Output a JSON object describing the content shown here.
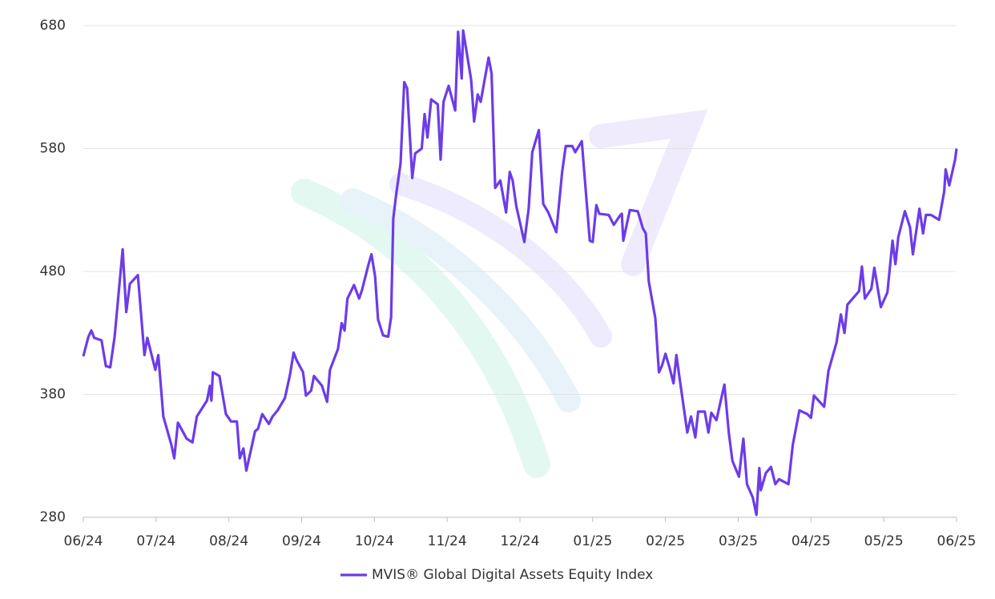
{
  "chart_data": {
    "type": "line",
    "legend": "bottom",
    "grid": true,
    "xlim": [
      0,
      12
    ],
    "xticks": [
      {
        "value": 0,
        "label": "06/24"
      },
      {
        "value": 1,
        "label": "07/24"
      },
      {
        "value": 2,
        "label": "08/24"
      },
      {
        "value": 3,
        "label": "09/24"
      },
      {
        "value": 4,
        "label": "10/24"
      },
      {
        "value": 5,
        "label": "11/24"
      },
      {
        "value": 6,
        "label": "12/24"
      },
      {
        "value": 7,
        "label": "01/25"
      },
      {
        "value": 8,
        "label": "02/25"
      },
      {
        "value": 9,
        "label": "03/25"
      },
      {
        "value": 10,
        "label": "04/25"
      },
      {
        "value": 11,
        "label": "05/25"
      },
      {
        "value": 12,
        "label": "06/25"
      }
    ],
    "ylim": [
      280,
      680
    ],
    "yticks": [
      280,
      380,
      480,
      580,
      680
    ],
    "x": [
      0,
      0.07,
      0.11,
      0.15,
      0.25,
      0.31,
      0.37,
      0.43,
      0.54,
      0.59,
      0.64,
      0.75,
      0.84,
      0.88,
      0.99,
      1.03,
      1.1,
      1.21,
      1.25,
      1.3,
      1.42,
      1.5,
      1.56,
      1.7,
      1.74,
      1.76,
      1.78,
      1.87,
      1.96,
      2.03,
      2.11,
      2.15,
      2.2,
      2.24,
      2.36,
      2.4,
      2.46,
      2.55,
      2.6,
      2.67,
      2.77,
      2.84,
      2.89,
      2.93,
      3.02,
      3.06,
      3.13,
      3.17,
      3.28,
      3.35,
      3.39,
      3.5,
      3.55,
      3.59,
      3.63,
      3.72,
      3.79,
      3.83,
      3.92,
      3.96,
      4.01,
      4.05,
      4.12,
      4.19,
      4.23,
      4.26,
      4.3,
      4.36,
      4.41,
      4.45,
      4.52,
      4.56,
      4.65,
      4.69,
      4.73,
      4.78,
      4.87,
      4.91,
      4.95,
      5.02,
      5.11,
      5.15,
      5.2,
      5.22,
      5.33,
      5.37,
      5.42,
      5.46,
      5.57,
      5.61,
      5.66,
      5.73,
      5.81,
      5.86,
      5.9,
      5.95,
      6.06,
      6.12,
      6.17,
      6.26,
      6.32,
      6.39,
      6.5,
      6.58,
      6.63,
      6.72,
      6.76,
      6.85,
      6.96,
      7.0,
      7.05,
      7.09,
      7.22,
      7.29,
      7.37,
      7.4,
      7.42,
      7.51,
      7.62,
      7.69,
      7.73,
      7.77,
      7.86,
      7.91,
      7.95,
      8.0,
      8.06,
      8.11,
      8.15,
      8.19,
      8.3,
      8.35,
      8.41,
      8.45,
      8.54,
      8.59,
      8.63,
      8.7,
      8.81,
      8.87,
      8.92,
      9.01,
      9.07,
      9.12,
      9.2,
      9.25,
      9.29,
      9.31,
      9.38,
      9.45,
      9.51,
      9.56,
      9.69,
      9.75,
      9.84,
      9.95,
      10.0,
      10.04,
      10.18,
      10.24,
      10.35,
      10.41,
      10.46,
      10.5,
      10.66,
      10.7,
      10.74,
      10.83,
      10.87,
      10.96,
      11.05,
      11.12,
      11.16,
      11.2,
      11.29,
      11.36,
      11.4,
      11.49,
      11.54,
      11.58,
      11.65,
      11.76,
      11.83,
      11.85,
      11.9,
      11.98,
      12.0
    ],
    "series": [
      {
        "name": "MVIS® Global Digital Assets Equity Index",
        "color": "#6c3ce9",
        "values": [
          411,
          427,
          432,
          426,
          424,
          403,
          402,
          427,
          498,
          447,
          470,
          477,
          412,
          426,
          400,
          412,
          362,
          339,
          328,
          357,
          344,
          341,
          362,
          375,
          387,
          375,
          398,
          395,
          364,
          358,
          358,
          328,
          336,
          318,
          350,
          352,
          364,
          356,
          362,
          367,
          377,
          396,
          414,
          408,
          398,
          379,
          383,
          395,
          387,
          374,
          400,
          417,
          438,
          432,
          458,
          469,
          458,
          465,
          486,
          494,
          476,
          441,
          428,
          427,
          443,
          523,
          543,
          568,
          634,
          629,
          556,
          576,
          580,
          608,
          589,
          620,
          616,
          571,
          618,
          631,
          611,
          675,
          637,
          676,
          636,
          602,
          624,
          618,
          654,
          641,
          548,
          554,
          528,
          561,
          554,
          533,
          504,
          531,
          577,
          595,
          535,
          528,
          512,
          561,
          582,
          582,
          577,
          586,
          505,
          504,
          534,
          527,
          526,
          518,
          525,
          527,
          505,
          530,
          529,
          515,
          511,
          472,
          442,
          398,
          403,
          413,
          401,
          389,
          412,
          395,
          349,
          362,
          345,
          366,
          366,
          349,
          365,
          359,
          388,
          349,
          326,
          313,
          344,
          307,
          296,
          282,
          320,
          302,
          316,
          321,
          307,
          311,
          307,
          339,
          367,
          364,
          361,
          379,
          370,
          399,
          422,
          445,
          430,
          453,
          464,
          484,
          458,
          466,
          483,
          451,
          463,
          505,
          486,
          508,
          529,
          516,
          494,
          531,
          511,
          526,
          526,
          522,
          545,
          563,
          550,
          571,
          580
        ]
      }
    ]
  }
}
